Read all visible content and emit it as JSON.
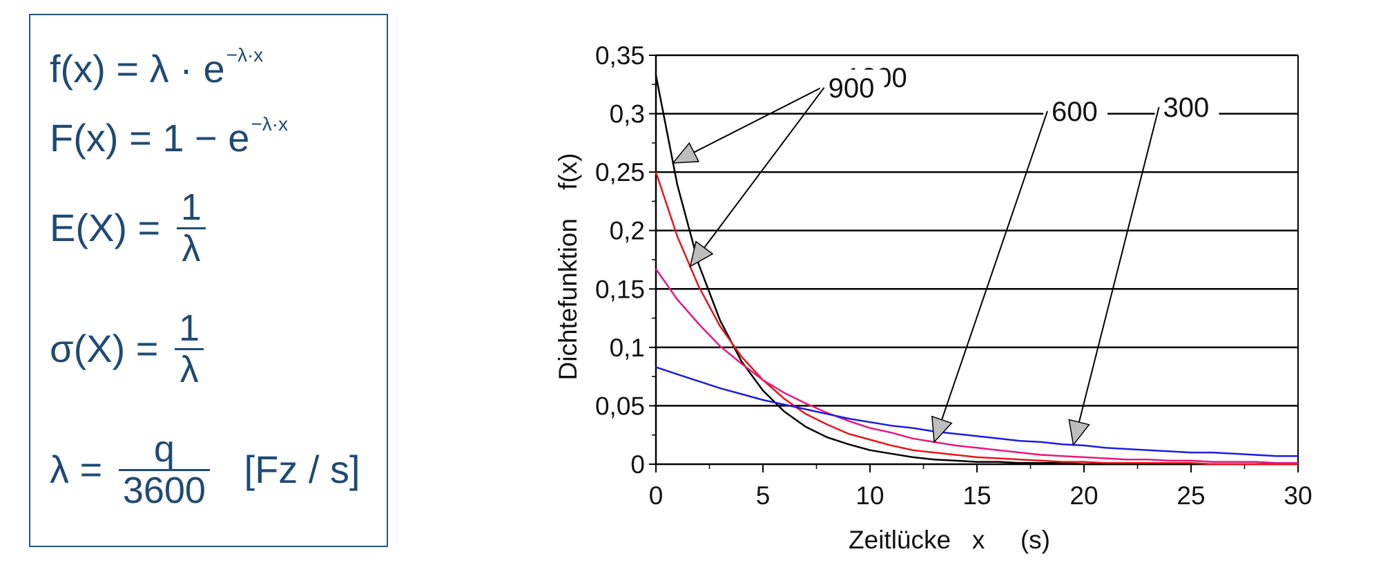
{
  "formulas": {
    "pdf_lhs": "f(x) = λ · e",
    "pdf_exp": "−λ·x",
    "cdf_lhs": "F(x) = 1 − e",
    "cdf_exp": "−λ·x",
    "mean_lhs": "E(X) =",
    "mean_num": "1",
    "mean_den": "λ",
    "sd_lhs": "σ(X) =",
    "sd_num": "1",
    "sd_den": "λ",
    "lambda_lhs": "λ =",
    "lambda_num": "q",
    "lambda_den": "3600",
    "lambda_unit": "[Fz / s]"
  },
  "chart_data": {
    "type": "line",
    "title": "",
    "xlabel": "Zeitlücke   x     (s)",
    "ylabel": "Dichtefunktion    f(x)",
    "xlim": [
      0,
      30
    ],
    "ylim": [
      0,
      0.35
    ],
    "x_ticks": [
      "0",
      "5",
      "10",
      "15",
      "20",
      "25",
      "30"
    ],
    "y_ticks": [
      "0",
      "0,05",
      "0,1",
      "0,15",
      "0,2",
      "0,25",
      "0,3",
      "0,35"
    ],
    "grid": "horizontal",
    "x": [
      0,
      1,
      2,
      3,
      4,
      5,
      6,
      7,
      8,
      9,
      10,
      11,
      12,
      13,
      14,
      15,
      16,
      17,
      18,
      19,
      20,
      21,
      22,
      23,
      24,
      25,
      26,
      27,
      28,
      29,
      30
    ],
    "series": [
      {
        "name": "1200",
        "color": "#000000",
        "values": [
          0.333,
          0.239,
          0.171,
          0.123,
          0.088,
          0.063,
          0.045,
          0.032,
          0.023,
          0.017,
          0.012,
          0.009,
          0.006,
          0.004,
          0.003,
          0.002,
          0.002,
          0.001,
          0.001,
          0.001,
          0.0,
          0.0,
          0.0,
          0.0,
          0.0,
          0.0,
          0.0,
          0.0,
          0.0,
          0.0,
          0.0
        ]
      },
      {
        "name": "900",
        "color": "#e8141a",
        "values": [
          0.25,
          0.195,
          0.152,
          0.118,
          0.092,
          0.072,
          0.056,
          0.043,
          0.034,
          0.026,
          0.021,
          0.016,
          0.012,
          0.01,
          0.008,
          0.006,
          0.005,
          0.004,
          0.003,
          0.002,
          0.002,
          0.001,
          0.001,
          0.001,
          0.001,
          0.001,
          0.0,
          0.0,
          0.0,
          0.0,
          0.0
        ]
      },
      {
        "name": "600",
        "color": "#e8187a",
        "values": [
          0.167,
          0.141,
          0.12,
          0.101,
          0.086,
          0.072,
          0.061,
          0.052,
          0.044,
          0.037,
          0.031,
          0.027,
          0.022,
          0.019,
          0.016,
          0.014,
          0.012,
          0.01,
          0.008,
          0.007,
          0.006,
          0.005,
          0.004,
          0.004,
          0.003,
          0.003,
          0.002,
          0.002,
          0.002,
          0.001,
          0.001
        ]
      },
      {
        "name": "300",
        "color": "#1c1ce0",
        "values": [
          0.083,
          0.077,
          0.071,
          0.065,
          0.06,
          0.055,
          0.051,
          0.047,
          0.043,
          0.039,
          0.036,
          0.033,
          0.031,
          0.028,
          0.026,
          0.024,
          0.022,
          0.02,
          0.019,
          0.017,
          0.016,
          0.014,
          0.013,
          0.012,
          0.011,
          0.01,
          0.01,
          0.009,
          0.008,
          0.007,
          0.007
        ]
      }
    ],
    "annotations": [
      {
        "text": "1200",
        "series": "1200",
        "at_x": 0.8
      },
      {
        "text": "900",
        "series": "900",
        "at_x": 1.6
      },
      {
        "text": "600",
        "series": "600",
        "at_x": 13
      },
      {
        "text": "300",
        "series": "300",
        "at_x": 19.5
      }
    ]
  }
}
